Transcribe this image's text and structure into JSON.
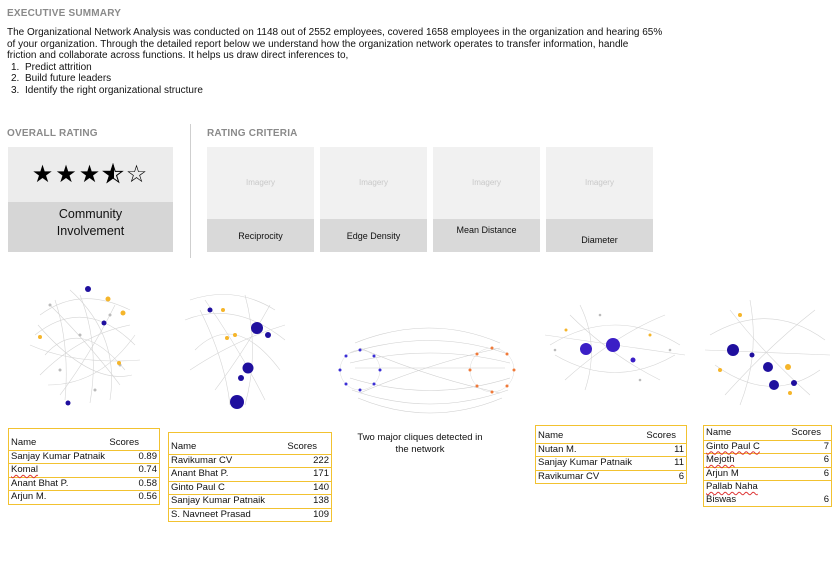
{
  "summary": {
    "title": "EXECUTIVE SUMMARY",
    "lines": [
      "The Organizational Network Analysis was conducted on 1148 out of 2552 employees, covered 1658 employees in the organization and hearing 65%",
      "of your organization.  Through the detailed report below we understand how the organization network operates to transfer information, handle",
      "friction and collaborate across functions.  It helps us draw direct inferences to,"
    ],
    "list": [
      {
        "num": "1.",
        "text": "Predict attrition"
      },
      {
        "num": "2.",
        "text": "Build future leaders"
      },
      {
        "num": "3.",
        "text": "Identify the right organizational structure"
      }
    ]
  },
  "overall": {
    "title": "OVERALL RATING",
    "rating": 3.5,
    "max": 5,
    "label_line1": "Community",
    "label_line2": "Involvement"
  },
  "criteria": {
    "title": "RATING CRITERIA",
    "placeholder": "Imagery",
    "items": [
      "Reciprocity",
      "Edge Density",
      "Mean Distance",
      "Diameter"
    ]
  },
  "tables": {
    "t1": {
      "headers": [
        "Name",
        "Scores"
      ],
      "rows": [
        [
          "Sanjay Kumar Patnaik",
          "0.89"
        ],
        [
          "Komal",
          "0.74"
        ],
        [
          "Anant Bhat P.",
          "0.58"
        ],
        [
          "Arjun M.",
          "0.56"
        ]
      ]
    },
    "t2": {
      "headers": [
        "Name",
        "Scores"
      ],
      "rows": [
        [
          "Ravikumar CV",
          "222"
        ],
        [
          "Anant Bhat P.",
          "171"
        ],
        [
          "Ginto Paul C",
          "140"
        ],
        [
          "Sanjay Kumar Patnaik",
          "138"
        ],
        [
          "S. Navneet Prasad",
          "109"
        ]
      ]
    },
    "t4": {
      "headers": [
        "Name",
        "Scores"
      ],
      "rows": [
        [
          "Nutan M.",
          "11"
        ],
        [
          "Sanjay Kumar Patnaik",
          "11"
        ],
        [
          "Ravikumar CV",
          "6"
        ]
      ]
    },
    "t5": {
      "headers": [
        "Name",
        "Scores"
      ],
      "rows": [
        [
          "Ginto Paul C",
          "7"
        ],
        [
          "Mejoth",
          "6"
        ],
        [
          "Arjun M",
          "6"
        ],
        [
          "Pallab Naha",
          ""
        ],
        [
          "Biswas",
          "6"
        ]
      ]
    }
  },
  "clique_note": {
    "line1": "Two major cliques detected in",
    "line2": "the network"
  },
  "colors": {
    "accent_border": "#f2c230",
    "node_primary": "#1f0f9e",
    "node_secondary": "#f5b52a",
    "clique_left": "#3b2fd6",
    "clique_right": "#f07a3a"
  }
}
